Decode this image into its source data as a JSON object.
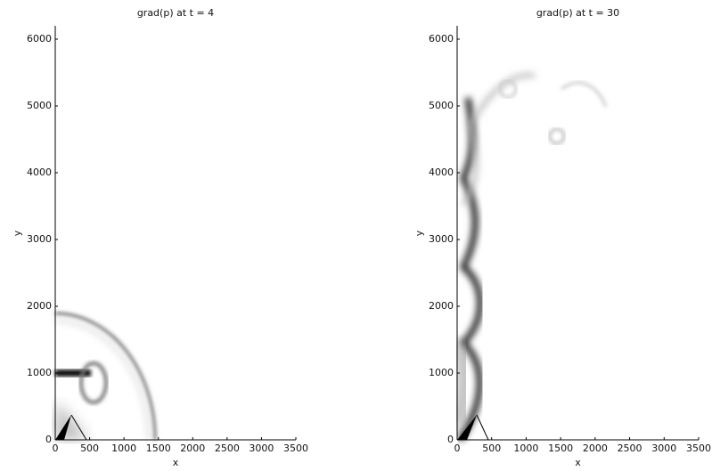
{
  "chart_data": [
    {
      "type": "image",
      "title": "grad(p) at t = 4",
      "xlabel": "x",
      "ylabel": "y",
      "xlim": [
        0,
        3500
      ],
      "ylim": [
        0,
        6200
      ],
      "xticks": [
        0,
        500,
        1000,
        1500,
        2000,
        2500,
        3000,
        3500
      ],
      "yticks": [
        0,
        1000,
        2000,
        3000,
        4000,
        5000,
        6000
      ]
    },
    {
      "type": "image",
      "title": "grad(p) at t = 30",
      "xlabel": "x",
      "ylabel": "y",
      "xlim": [
        0,
        3500
      ],
      "ylim": [
        0,
        6200
      ],
      "xticks": [
        0,
        500,
        1000,
        1500,
        2000,
        2500,
        3000,
        3500
      ],
      "yticks": [
        0,
        1000,
        2000,
        3000,
        4000,
        5000,
        6000
      ]
    }
  ]
}
